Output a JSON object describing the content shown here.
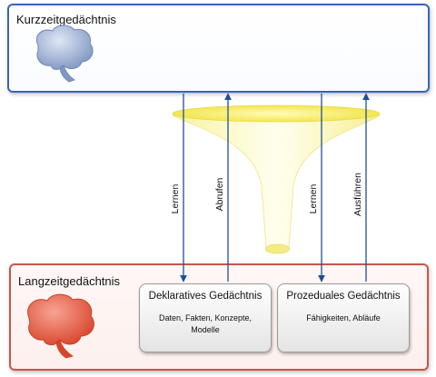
{
  "short_term": {
    "title": "Kurzzeitgedächtnis"
  },
  "long_term": {
    "title": "Langzeitgedächtnis",
    "declarative": {
      "title": "Deklaratives Gedächtnis",
      "content": "Daten, Fakten, Konzepte, Modelle"
    },
    "procedural": {
      "title": "Prozeduales Gedächtnis",
      "content": "Fähigkeiten, Abläufe"
    }
  },
  "arrows": {
    "lernen_1": "Lernen",
    "abrufen": "Abrufen",
    "lernen_2": "Lernen",
    "ausfuehren": "Ausführen"
  },
  "icons": {
    "short_term_brain": "brain-icon",
    "long_term_brain": "brain-icon",
    "funnel": "funnel-icon"
  },
  "colors": {
    "short_term_border": "#3a64b4",
    "long_term_border": "#c8574a",
    "short_term_brain": "#8fa6cc",
    "long_term_brain": "#e8684f",
    "arrow": "#1f4f9a",
    "funnel": "#fbf59a"
  }
}
